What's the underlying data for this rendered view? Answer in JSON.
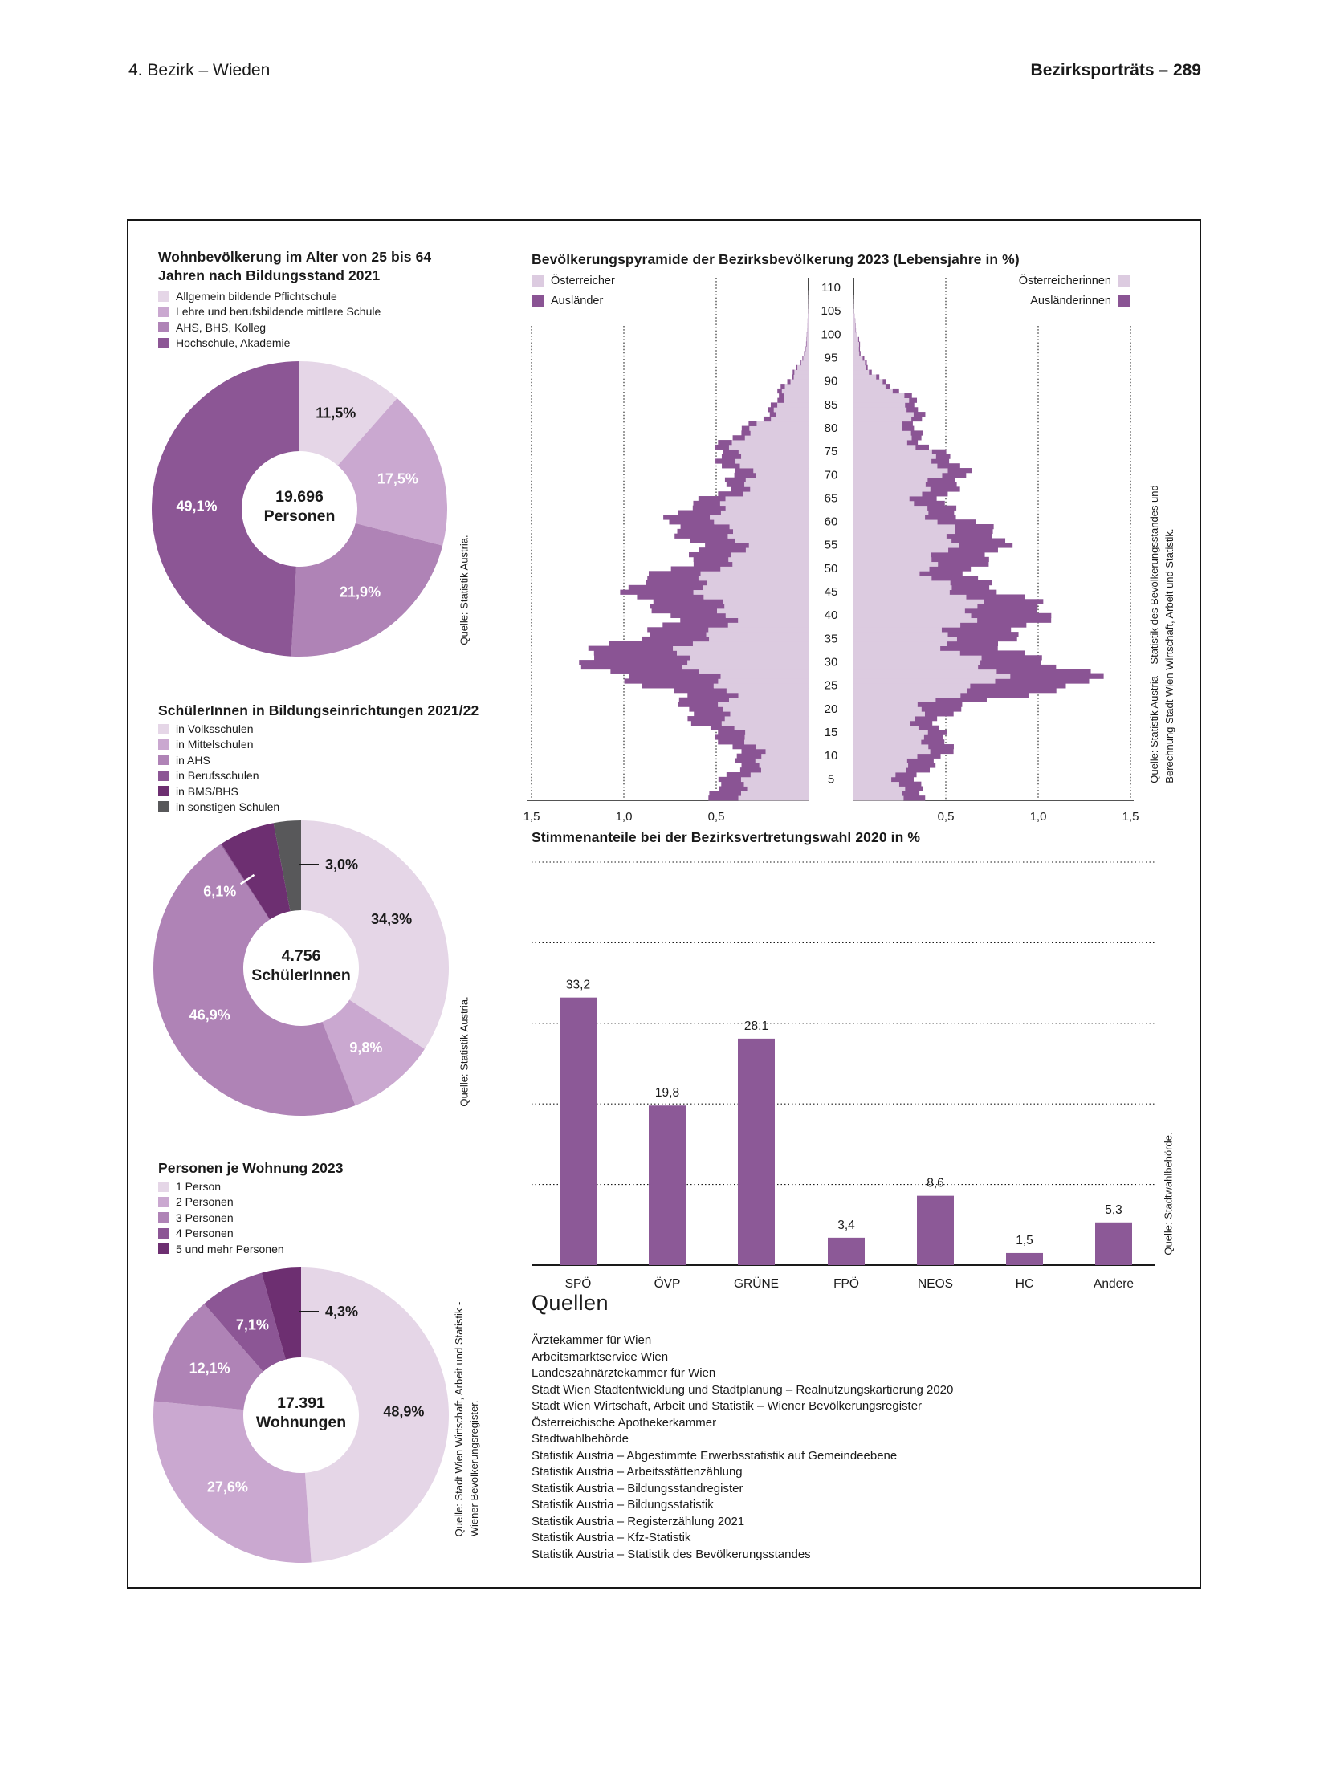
{
  "header": {
    "left": "4. Bezirk – Wieden",
    "right": "Bezirksporträts – 289"
  },
  "colors": {
    "text": "#1a1a1a",
    "purple_1": "#e5d6e7",
    "purple_2": "#caa8d0",
    "purple_3": "#af83b6",
    "purple_4": "#8c5695",
    "purple_5": "#6d2f71",
    "gray": "#58585a",
    "pyramid_light": "#dccbe0",
    "pyramid_dark": "#8a5494",
    "bar": "#8c5997"
  },
  "chart_data": [
    {
      "id": "bildungsstand",
      "type": "pie",
      "title_lines": [
        "Wohnbevölkerung im Alter von 25 bis 64",
        "Jahren nach Bildungsstand 2021"
      ],
      "center_value": "19.696",
      "center_label": "Personen",
      "source": "Quelle: Statistik Austria.",
      "slices": [
        {
          "label": "Allgemein bildende Pflichtschule",
          "value": 11.5,
          "display": "11,5%",
          "color": "#e5d6e7",
          "text_color": "#1a1a1a",
          "pos": "auto"
        },
        {
          "label": "Lehre und berufsbildende mittlere Schule",
          "value": 17.5,
          "display": "17,5%",
          "color": "#caa8d0",
          "text_color": "#ffffff",
          "pos": "auto"
        },
        {
          "label": "AHS, BHS, Kolleg",
          "value": 21.9,
          "display": "21,9%",
          "color": "#af83b6",
          "text_color": "#ffffff",
          "pos": "auto"
        },
        {
          "label": "Hochschule, Akademie",
          "value": 49.1,
          "display": "49,1%",
          "color": "#8c5695",
          "text_color": "#ffffff",
          "pos": "auto"
        }
      ]
    },
    {
      "id": "pyramide",
      "type": "population-pyramid",
      "title": "Bevölkerungspyramide der Bezirksbevölkerung 2023 (Lebensjahre in %)",
      "legend_left": [
        {
          "label": "Österreicher",
          "color": "#dccbe0"
        },
        {
          "label": "Ausländer",
          "color": "#8a5494"
        }
      ],
      "legend_right": [
        {
          "label": "Österreicherinnen",
          "color": "#dccbe0"
        },
        {
          "label": "Ausländerinnen",
          "color": "#8a5494"
        }
      ],
      "source_lines": [
        "Quelle: Statistik Austria – Statistik des Bevölkerungsstandes und",
        "Berechnung Stadt Wien Wirtschaft, Arbeit und Statistik."
      ],
      "xlim": 1.5,
      "xtick_labels_left": [
        "1,5",
        "1,0",
        "0,5"
      ],
      "xtick_labels_right": [
        "0,5",
        "1,0",
        "1,5"
      ],
      "age_ticks": [
        5,
        10,
        15,
        20,
        25,
        30,
        35,
        40,
        45,
        50,
        55,
        60,
        65,
        70,
        75,
        80,
        85,
        90,
        95,
        100,
        105,
        110
      ],
      "ages_step5": [
        0,
        5,
        10,
        15,
        20,
        25,
        30,
        35,
        40,
        45,
        50,
        55,
        60,
        65,
        70,
        75,
        80,
        85,
        90,
        95,
        100,
        105,
        110
      ],
      "series": {
        "men_austrian": [
          0.3,
          0.31,
          0.32,
          0.34,
          0.45,
          0.6,
          0.59,
          0.55,
          0.53,
          0.5,
          0.47,
          0.44,
          0.42,
          0.4,
          0.38,
          0.34,
          0.28,
          0.17,
          0.07,
          0.02,
          0.006,
          0.002,
          0.0
        ],
        "men_foreign": [
          0.14,
          0.14,
          0.13,
          0.12,
          0.26,
          0.46,
          0.45,
          0.42,
          0.34,
          0.32,
          0.27,
          0.26,
          0.21,
          0.15,
          0.1,
          0.07,
          0.05,
          0.03,
          0.01,
          0.005,
          0.001,
          0.0,
          0.0
        ],
        "women_austrian": [
          0.29,
          0.29,
          0.33,
          0.34,
          0.48,
          0.66,
          0.63,
          0.62,
          0.56,
          0.53,
          0.49,
          0.46,
          0.44,
          0.42,
          0.4,
          0.37,
          0.34,
          0.24,
          0.12,
          0.04,
          0.01,
          0.002,
          0.0
        ],
        "women_foreign": [
          0.13,
          0.13,
          0.11,
          0.12,
          0.24,
          0.47,
          0.4,
          0.35,
          0.33,
          0.28,
          0.27,
          0.23,
          0.21,
          0.15,
          0.11,
          0.08,
          0.06,
          0.04,
          0.02,
          0.006,
          0.002,
          0.0,
          0.0
        ]
      }
    },
    {
      "id": "schueler",
      "type": "pie",
      "title": "SchülerInnen in Bildungseinrichtungen 2021/22",
      "center_value": "4.756",
      "center_label": "SchülerInnen",
      "source": "Quelle: Statistik Austria.",
      "slices": [
        {
          "label": "in Volksschulen",
          "value": 34.3,
          "display": "34,3%",
          "color": "#e5d6e7",
          "text_color": "#1a1a1a",
          "pos": "auto"
        },
        {
          "label": "in Mittelschulen",
          "value": 9.8,
          "display": "9,8%",
          "color": "#caa8d0",
          "text_color": "#ffffff",
          "pos": "auto"
        },
        {
          "label": "in AHS",
          "value": 46.9,
          "display": "46,9%",
          "color": "#af83b6",
          "text_color": "#ffffff",
          "pos": "auto"
        },
        {
          "label": "in Berufsschulen",
          "value": 0.1,
          "display": "",
          "color": "#8c5695",
          "text_color": "#ffffff",
          "pos": "none"
        },
        {
          "label": "in BMS/BHS",
          "value": 6.1,
          "display": "6,1%",
          "color": "#6d2f71",
          "text_color": "#ffffff",
          "pos": "leader-in"
        },
        {
          "label": "in sonstigen Schulen",
          "value": 3.0,
          "display": "3,0%",
          "color": "#58585a",
          "text_color": "#1a1a1a",
          "pos": "out-top"
        }
      ]
    },
    {
      "id": "wahl",
      "type": "bar",
      "title": "Stimmenanteile bei der Bezirksvertretungswahl 2020 in %",
      "categories": [
        "SPÖ",
        "ÖVP",
        "GRÜNE",
        "FPÖ",
        "NEOS",
        "HC",
        "Andere"
      ],
      "values": [
        33.2,
        19.8,
        28.1,
        3.4,
        8.6,
        1.5,
        5.3
      ],
      "value_displays": [
        "33,2",
        "19,8",
        "28,1",
        "3,4",
        "8,6",
        "1,5",
        "5,3"
      ],
      "ylim": [
        0,
        50
      ],
      "grid_step": 10,
      "grid": "dotted",
      "bar_color": "#8c5997",
      "source": "Quelle: Stadtwahlbehörde."
    },
    {
      "id": "wohnung",
      "type": "pie",
      "title": "Personen je Wohnung 2023",
      "center_value": "17.391",
      "center_label": "Wohnungen",
      "source_lines": [
        "Quelle: Stadt Wien Wirtschaft, Arbeit und Statistik -",
        "Wiener Bevölkerungsregister."
      ],
      "slices": [
        {
          "label": "1 Person",
          "value": 48.9,
          "display": "48,9%",
          "color": "#e5d6e7",
          "text_color": "#1a1a1a",
          "pos": "auto"
        },
        {
          "label": "2 Personen",
          "value": 27.6,
          "display": "27,6%",
          "color": "#caa8d0",
          "text_color": "#ffffff",
          "pos": "auto"
        },
        {
          "label": "3 Personen",
          "value": 12.1,
          "display": "12,1%",
          "color": "#af83b6",
          "text_color": "#ffffff",
          "pos": "auto"
        },
        {
          "label": "4 Personen",
          "value": 7.1,
          "display": "7,1%",
          "color": "#8c5695",
          "text_color": "#ffffff",
          "pos": "auto"
        },
        {
          "label": "5 und mehr Personen",
          "value": 4.3,
          "display": "4,3%",
          "color": "#6d2f71",
          "text_color": "#1a1a1a",
          "pos": "out-top"
        }
      ]
    }
  ],
  "quellen": {
    "heading": "Quellen",
    "items": [
      "Ärztekammer für Wien",
      "Arbeitsmarktservice Wien",
      "Landeszahnärztekammer für Wien",
      "Stadt Wien Stadtentwicklung und Stadtplanung – Realnutzungskartierung 2020",
      "Stadt Wien Wirtschaft, Arbeit und Statistik – Wiener Bevölkerungsregister",
      "Österreichische Apothekerkammer",
      "Stadtwahlbehörde",
      "Statistik Austria – Abgestimmte Erwerbsstatistik auf Gemeindeebene",
      "Statistik Austria – Arbeitsstättenzählung",
      "Statistik Austria – Bildungsstandregister",
      "Statistik Austria – Bildungsstatistik",
      "Statistik Austria – Registerzählung 2021",
      "Statistik Austria – Kfz-Statistik",
      "Statistik Austria – Statistik des Bevölkerungsstandes"
    ]
  }
}
